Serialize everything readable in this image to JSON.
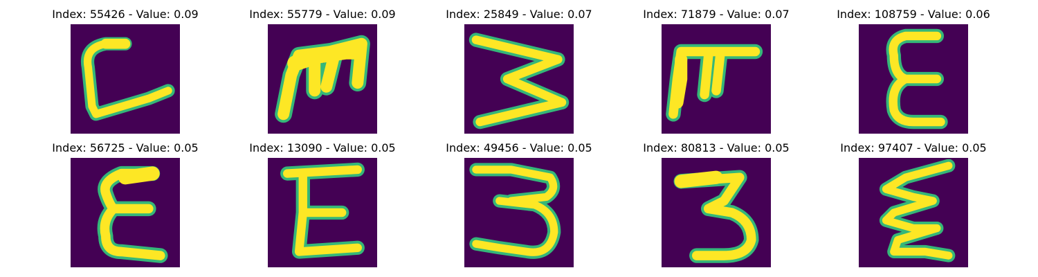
{
  "colors": {
    "background": "#440154",
    "stroke": "#fde725",
    "stroke_edge": "#35b779",
    "stroke_mid": "#21918c"
  },
  "panels": [
    {
      "title": "Index: 55426 - Value: 0.09",
      "glyph": "C"
    },
    {
      "title": "Index: 55779 - Value: 0.09",
      "glyph": "m"
    },
    {
      "title": "Index: 25849 - Value: 0.07",
      "glyph": "3-rotated"
    },
    {
      "title": "Index: 71879 - Value: 0.07",
      "glyph": "m"
    },
    {
      "title": "Index: 108759 - Value: 0.06",
      "glyph": "E"
    },
    {
      "title": "Index: 56725 - Value: 0.05",
      "glyph": "E"
    },
    {
      "title": "Index: 13090 - Value: 0.05",
      "glyph": "E"
    },
    {
      "title": "Index: 49456 - Value: 0.05",
      "glyph": "3"
    },
    {
      "title": "Index: 80813 - Value: 0.05",
      "glyph": "3"
    },
    {
      "title": "Index: 97407 - Value: 0.05",
      "glyph": "E"
    }
  ]
}
